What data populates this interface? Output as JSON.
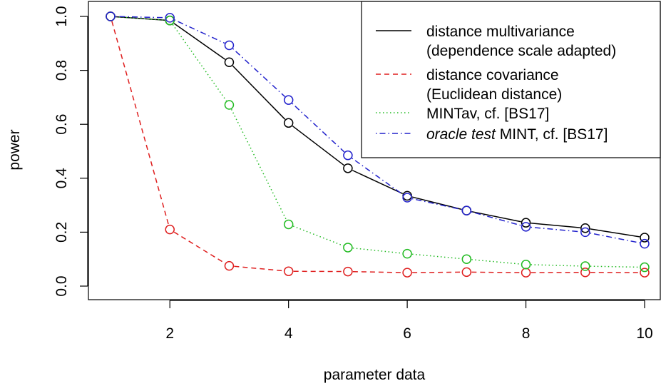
{
  "chart_data": {
    "type": "line",
    "title": "",
    "xlabel": "parameter data",
    "ylabel": "power",
    "xlim": [
      1,
      10
    ],
    "ylim": [
      0,
      1
    ],
    "x_ticks": [
      2,
      4,
      6,
      8,
      10
    ],
    "x_tick_labels": [
      "2",
      "4",
      "6",
      "8",
      "10"
    ],
    "y_ticks": [
      0.0,
      0.2,
      0.4,
      0.6,
      0.8,
      1.0
    ],
    "y_tick_labels": [
      "0.0",
      "0.2",
      "0.4",
      "0.6",
      "0.8",
      "1.0"
    ],
    "grid": false,
    "legend_position": "top-right",
    "x": [
      1,
      2,
      3,
      4,
      5,
      6,
      7,
      8,
      9,
      10
    ],
    "series": [
      {
        "name": "distance multivariance",
        "name_line2": "(dependence scale adapted)",
        "color": "#000000",
        "dash": "solid",
        "values": [
          1.0,
          0.985,
          0.83,
          0.605,
          0.437,
          0.335,
          0.28,
          0.235,
          0.215,
          0.18
        ]
      },
      {
        "name": "distance covariance",
        "name_line2": "(Euclidean distance)",
        "color": "#df1f1f",
        "dash": "dashed",
        "values": [
          1.0,
          0.21,
          0.075,
          0.055,
          0.054,
          0.05,
          0.052,
          0.05,
          0.051,
          0.05
        ]
      },
      {
        "name": "MINTav, cf. [BS17]",
        "name_line2": "",
        "color": "#22bb22",
        "dash": "dotted",
        "values": [
          1.0,
          0.985,
          0.672,
          0.229,
          0.143,
          0.12,
          0.1,
          0.08,
          0.074,
          0.07
        ]
      },
      {
        "name_italic": "oracle test",
        "name": " MINT, cf. [BS17]",
        "name_line2": "",
        "color": "#2222cc",
        "dash": "dotdash",
        "values": [
          1.0,
          0.995,
          0.893,
          0.69,
          0.485,
          0.328,
          0.28,
          0.22,
          0.2,
          0.157
        ]
      }
    ]
  }
}
